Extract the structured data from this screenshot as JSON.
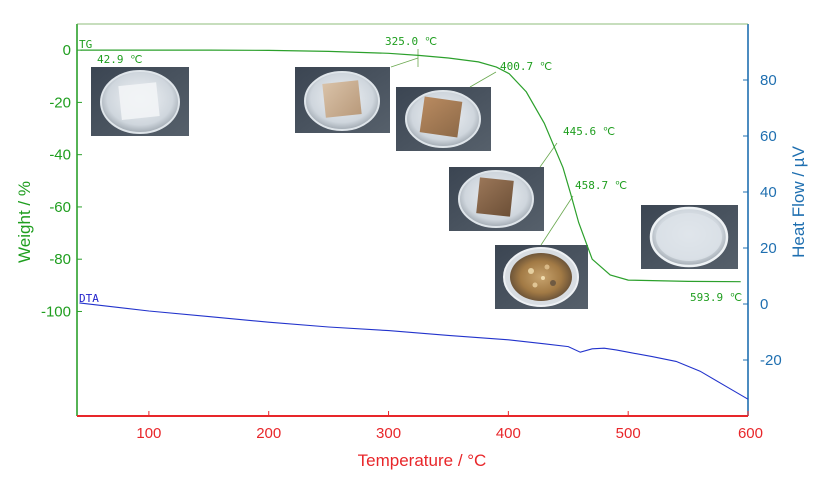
{
  "chart_data": {
    "type": "line",
    "xlabel": "Temperature / °C",
    "ylabel_left": "Weight / %",
    "ylabel_right": "Heat Flow / µV",
    "xlim": [
      40,
      600
    ],
    "ylim_left": [
      -140,
      10
    ],
    "ylim_right": [
      -40,
      100
    ],
    "x_ticks": [
      "100",
      "200",
      "300",
      "400",
      "500",
      "600"
    ],
    "y_left_ticks": [
      "0",
      "-20",
      "-40",
      "-60",
      "-80",
      "-100"
    ],
    "y_right_ticks": [
      "80",
      "60",
      "40",
      "20",
      "0",
      "-20"
    ],
    "colors": {
      "tg": "#2ca02c",
      "dta": "#2233cc",
      "x_axis": "#e8262a",
      "right_axis": "#1f6fb0"
    },
    "series": [
      {
        "name": "TG",
        "axis": "left",
        "x": [
          42.9,
          100,
          150,
          200,
          250,
          300,
          325,
          350,
          375,
          390,
          400.7,
          415,
          430,
          445.6,
          452,
          458.7,
          470,
          485,
          500,
          550,
          593.9
        ],
        "y": [
          0,
          0,
          0,
          -0.1,
          -0.5,
          -1.2,
          -2.0,
          -3.0,
          -4.5,
          -6.5,
          -9.0,
          -16,
          -28,
          -45,
          -55,
          -66,
          -80,
          -86,
          -88,
          -88.5,
          -88.6
        ]
      },
      {
        "name": "DTA",
        "axis": "right",
        "x": [
          42,
          60,
          100,
          150,
          200,
          250,
          300,
          350,
          400,
          430,
          450,
          460,
          470,
          480,
          490,
          500,
          520,
          540,
          560,
          580,
          600
        ],
        "y": [
          0.4,
          -0.5,
          -2.5,
          -4.5,
          -6.5,
          -8.2,
          -9.5,
          -11.2,
          -12.8,
          -14.2,
          -15.2,
          -17.2,
          -16.0,
          -15.8,
          -16.4,
          -17.2,
          -18.8,
          -20.5,
          -24,
          -29,
          -34
        ]
      }
    ],
    "annotations": [
      {
        "text": "42.9 ℃"
      },
      {
        "text": "325.0 ℃"
      },
      {
        "text": "400.7 ℃"
      },
      {
        "text": "445.6 ℃"
      },
      {
        "text": "458.7 ℃"
      },
      {
        "text": "593.9 ℃"
      }
    ]
  }
}
